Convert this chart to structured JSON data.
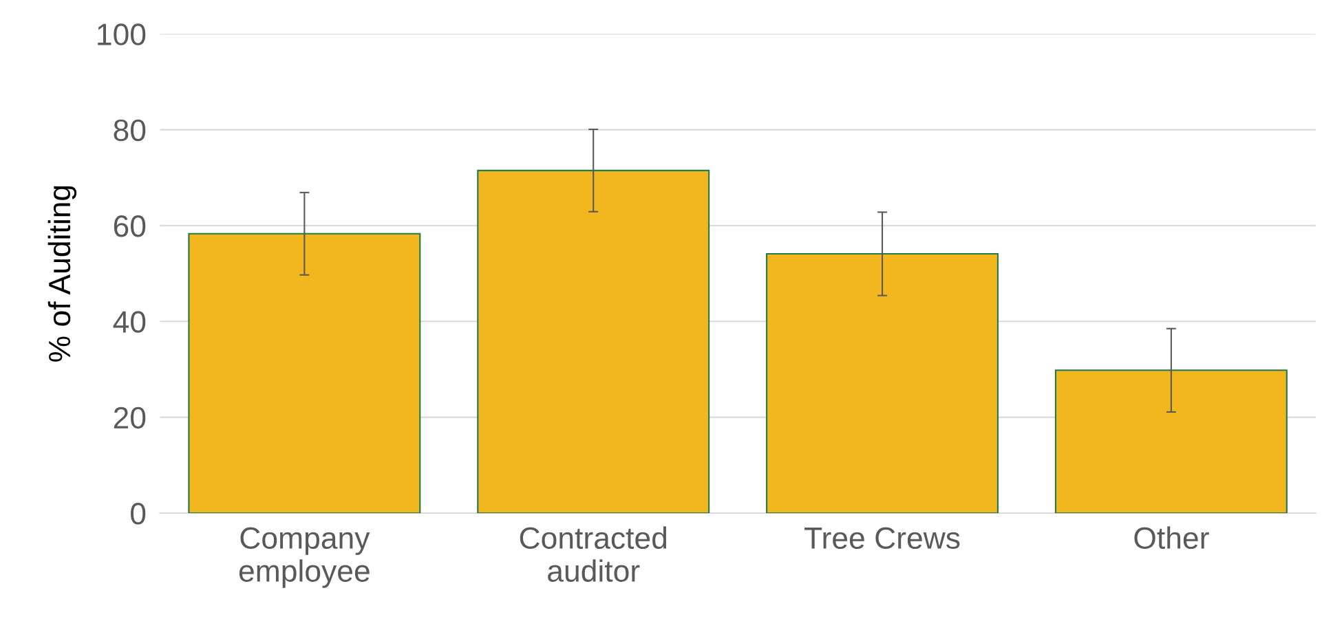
{
  "chart_data": {
    "type": "bar",
    "ylabel": "% of Auditing",
    "categories": [
      "Company\nemployee",
      "Contracted\nauditor",
      "Tree Crews",
      "Other"
    ],
    "values": [
      58.3,
      71.5,
      54.1,
      29.8
    ],
    "errors": [
      8.6,
      8.6,
      8.7,
      8.7
    ],
    "color": "#f2b61f",
    "ylim": [
      0,
      100
    ],
    "yticks": [
      0,
      20,
      40,
      60,
      80,
      100
    ],
    "grid": "y",
    "legend": false
  }
}
